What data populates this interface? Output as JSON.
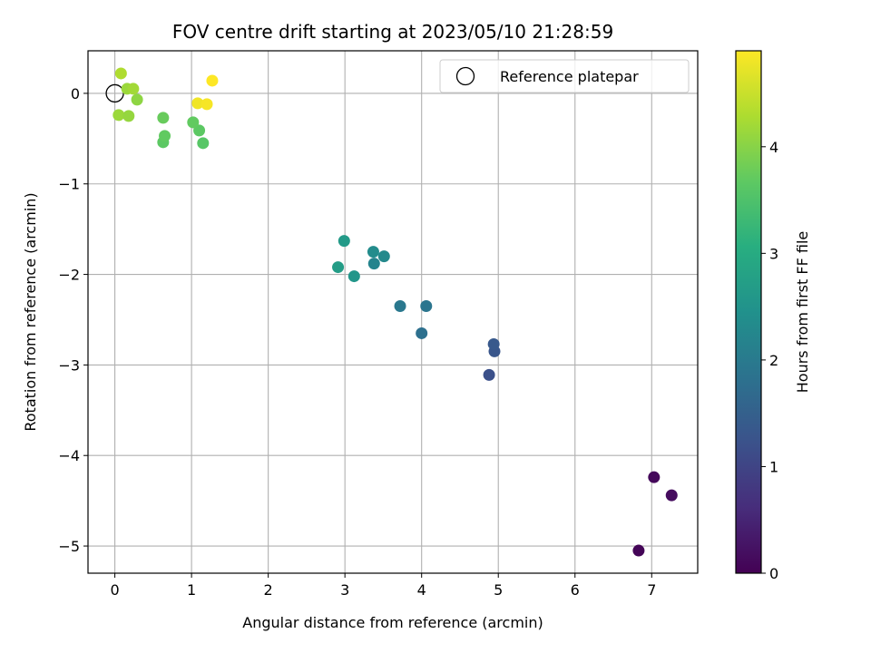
{
  "chart_data": {
    "type": "scatter",
    "title": "FOV centre drift starting at 2023/05/10 21:28:59",
    "xlabel": "Angular distance from reference (arcmin)",
    "ylabel": "Rotation from reference (arcmin)",
    "xlim": [
      -0.35,
      7.6
    ],
    "ylim": [
      -5.3,
      0.47
    ],
    "xticks": [
      0,
      1,
      2,
      3,
      4,
      5,
      6,
      7
    ],
    "yticks": [
      0,
      -1,
      -2,
      -3,
      -4,
      -5
    ],
    "grid": true,
    "colormap": "viridis",
    "colorbar": {
      "label": "Hours from first FF file",
      "range": [
        0,
        4.9
      ],
      "ticks": [
        0,
        1,
        2,
        3,
        4
      ]
    },
    "legend": {
      "placement": "top-right",
      "entries": [
        "Reference platepar"
      ]
    },
    "reference_point": {
      "x": 0,
      "y": 0
    },
    "points": [
      {
        "x": 6.83,
        "y": -5.05,
        "hours": 0.05
      },
      {
        "x": 7.03,
        "y": -4.24,
        "hours": 0.1
      },
      {
        "x": 7.26,
        "y": -4.44,
        "hours": 0.15
      },
      {
        "x": 4.88,
        "y": -3.11,
        "hours": 1.2
      },
      {
        "x": 4.95,
        "y": -2.85,
        "hours": 1.3
      },
      {
        "x": 4.94,
        "y": -2.77,
        "hours": 1.35
      },
      {
        "x": 4.0,
        "y": -2.65,
        "hours": 1.8
      },
      {
        "x": 3.72,
        "y": -2.35,
        "hours": 1.95
      },
      {
        "x": 4.06,
        "y": -2.35,
        "hours": 1.9
      },
      {
        "x": 3.38,
        "y": -1.88,
        "hours": 2.2
      },
      {
        "x": 3.51,
        "y": -1.8,
        "hours": 2.3
      },
      {
        "x": 3.37,
        "y": -1.75,
        "hours": 2.35
      },
      {
        "x": 3.12,
        "y": -2.02,
        "hours": 2.55
      },
      {
        "x": 2.91,
        "y": -1.92,
        "hours": 2.7
      },
      {
        "x": 2.99,
        "y": -1.63,
        "hours": 2.65
      },
      {
        "x": 0.63,
        "y": -0.54,
        "hours": 3.65
      },
      {
        "x": 0.65,
        "y": -0.47,
        "hours": 3.7
      },
      {
        "x": 1.15,
        "y": -0.55,
        "hours": 3.6
      },
      {
        "x": 1.1,
        "y": -0.41,
        "hours": 3.65
      },
      {
        "x": 1.02,
        "y": -0.32,
        "hours": 3.7
      },
      {
        "x": 0.63,
        "y": -0.27,
        "hours": 3.75
      },
      {
        "x": 0.05,
        "y": -0.24,
        "hours": 4.15
      },
      {
        "x": 0.18,
        "y": -0.25,
        "hours": 4.1
      },
      {
        "x": 0.29,
        "y": -0.07,
        "hours": 4.05
      },
      {
        "x": 0.16,
        "y": 0.05,
        "hours": 4.15
      },
      {
        "x": 0.24,
        "y": 0.05,
        "hours": 4.2
      },
      {
        "x": 0.08,
        "y": 0.22,
        "hours": 4.3
      },
      {
        "x": 1.08,
        "y": -0.11,
        "hours": 4.8
      },
      {
        "x": 1.2,
        "y": -0.12,
        "hours": 4.85
      },
      {
        "x": 1.27,
        "y": 0.14,
        "hours": 4.9
      }
    ]
  }
}
